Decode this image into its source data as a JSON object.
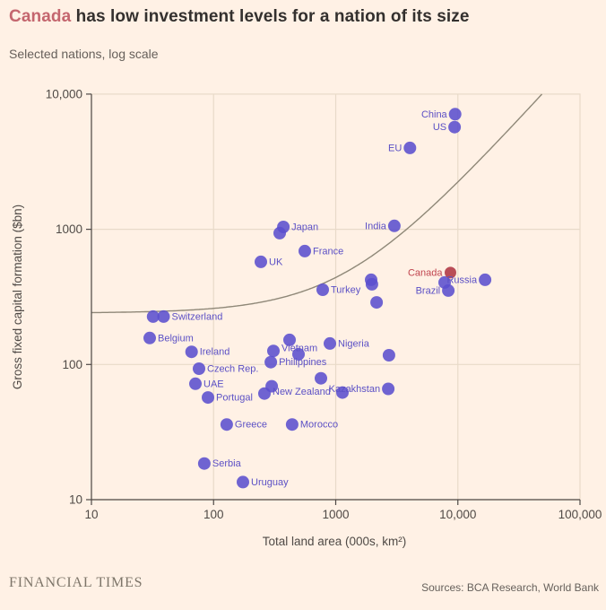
{
  "header": {
    "title_highlight": "Canada",
    "title_rest": " has low investment levels for a nation of its size",
    "subtitle": "Selected nations, log scale"
  },
  "footer": {
    "brand": "FINANCIAL TIMES",
    "source": "Sources: BCA Research, World Bank"
  },
  "colors": {
    "background": "#fff1e5",
    "dot": "#5b4fce",
    "dot_highlight": "#b5434f",
    "label": "#5b50c5",
    "label_highlight": "#c0444e",
    "grid": "#e8dac9",
    "axis": "#4d4845",
    "tick_text": "#4f4a46",
    "trend": "#8f8878",
    "title_text": "#33302e",
    "title_highlight": "#c4666e",
    "muted_text": "#66605b"
  },
  "chart_data": {
    "type": "scatter",
    "title": "Canada has low investment levels for a nation of its size",
    "subtitle": "Selected nations, log scale",
    "x_axis": {
      "label": "Total land area (000s, km²)",
      "scale": "log",
      "range": [
        10,
        100000
      ],
      "ticks": [
        "10",
        "100",
        "1000",
        "10,000",
        "100,000"
      ],
      "tick_values": [
        10,
        100,
        1000,
        10000,
        100000
      ]
    },
    "y_axis": {
      "label": "Gross fixed capital formation ($bn)",
      "scale": "log",
      "range": [
        10,
        10000
      ],
      "ticks": [
        "10,000",
        "1000",
        "100",
        "10"
      ],
      "tick_values": [
        10000,
        1000,
        100,
        10
      ],
      "grid": true
    },
    "trendline": {
      "type": "linear fit drawn on log-log axes",
      "intercept": 240,
      "slope": 0.2
    },
    "points": [
      {
        "label": "China",
        "area": 9500,
        "gfcf": 7100,
        "label_side": "left"
      },
      {
        "label": "US",
        "area": 9400,
        "gfcf": 5700,
        "label_side": "left"
      },
      {
        "label": "EU",
        "area": 4050,
        "gfcf": 4000,
        "label_side": "left"
      },
      {
        "label": "India",
        "area": 3020,
        "gfcf": 1060,
        "label_side": "left"
      },
      {
        "label": "Japan",
        "area": 373,
        "gfcf": 1040,
        "label_side": "right"
      },
      {
        "label": "",
        "area": 348,
        "gfcf": 936
      },
      {
        "label": "France",
        "area": 558,
        "gfcf": 690,
        "label_side": "right"
      },
      {
        "label": "UK",
        "area": 244,
        "gfcf": 574,
        "label_side": "right"
      },
      {
        "label": "Turkey",
        "area": 783,
        "gfcf": 357,
        "label_side": "right"
      },
      {
        "label": "",
        "area": 1950,
        "gfcf": 423
      },
      {
        "label": "",
        "area": 1980,
        "gfcf": 392
      },
      {
        "label": "",
        "area": 2160,
        "gfcf": 288
      },
      {
        "label": "Russia",
        "area": 16700,
        "gfcf": 423,
        "label_side": "left"
      },
      {
        "label": "Brazil",
        "area": 8350,
        "gfcf": 352,
        "label_side": "left"
      },
      {
        "label": "",
        "area": 7800,
        "gfcf": 404
      },
      {
        "label": "Canada",
        "area": 8700,
        "gfcf": 478,
        "label_side": "left",
        "highlight": true
      },
      {
        "label": "Switzerland",
        "area": 39,
        "gfcf": 226,
        "label_side": "right"
      },
      {
        "label": "",
        "area": 32,
        "gfcf": 226
      },
      {
        "label": "Belgium",
        "area": 30,
        "gfcf": 157,
        "label_side": "right"
      },
      {
        "label": "Ireland",
        "area": 66,
        "gfcf": 124,
        "label_side": "right"
      },
      {
        "label": "Nigeria",
        "area": 896,
        "gfcf": 143,
        "label_side": "right"
      },
      {
        "label": "Vietnam",
        "area": 309,
        "gfcf": 126,
        "label_side": "right",
        "label_dy": -3
      },
      {
        "label": "",
        "area": 419,
        "gfcf": 152
      },
      {
        "label": "",
        "area": 496,
        "gfcf": 119
      },
      {
        "label": "Czech Rep.",
        "area": 76,
        "gfcf": 93,
        "label_side": "right"
      },
      {
        "label": "Philippines",
        "area": 294,
        "gfcf": 104,
        "label_side": "right"
      },
      {
        "label": "UAE",
        "area": 71,
        "gfcf": 72,
        "label_side": "right"
      },
      {
        "label": "Portugal",
        "area": 90,
        "gfcf": 57,
        "label_side": "right"
      },
      {
        "label": "New Zealand",
        "area": 261,
        "gfcf": 61,
        "label_side": "right",
        "label_dy": -2
      },
      {
        "label": "",
        "area": 299,
        "gfcf": 69
      },
      {
        "label": "Kazakhstan",
        "area": 2690,
        "gfcf": 66,
        "label_side": "left"
      },
      {
        "label": "",
        "area": 2730,
        "gfcf": 117
      },
      {
        "label": "",
        "area": 757,
        "gfcf": 79
      },
      {
        "label": "",
        "area": 1135,
        "gfcf": 62
      },
      {
        "label": "Greece",
        "area": 128,
        "gfcf": 36,
        "label_side": "right"
      },
      {
        "label": "Morocco",
        "area": 440,
        "gfcf": 36,
        "label_side": "right"
      },
      {
        "label": "Serbia",
        "area": 84,
        "gfcf": 18.5,
        "label_side": "right"
      },
      {
        "label": "Uruguay",
        "area": 174,
        "gfcf": 13.5,
        "label_side": "right"
      }
    ]
  }
}
